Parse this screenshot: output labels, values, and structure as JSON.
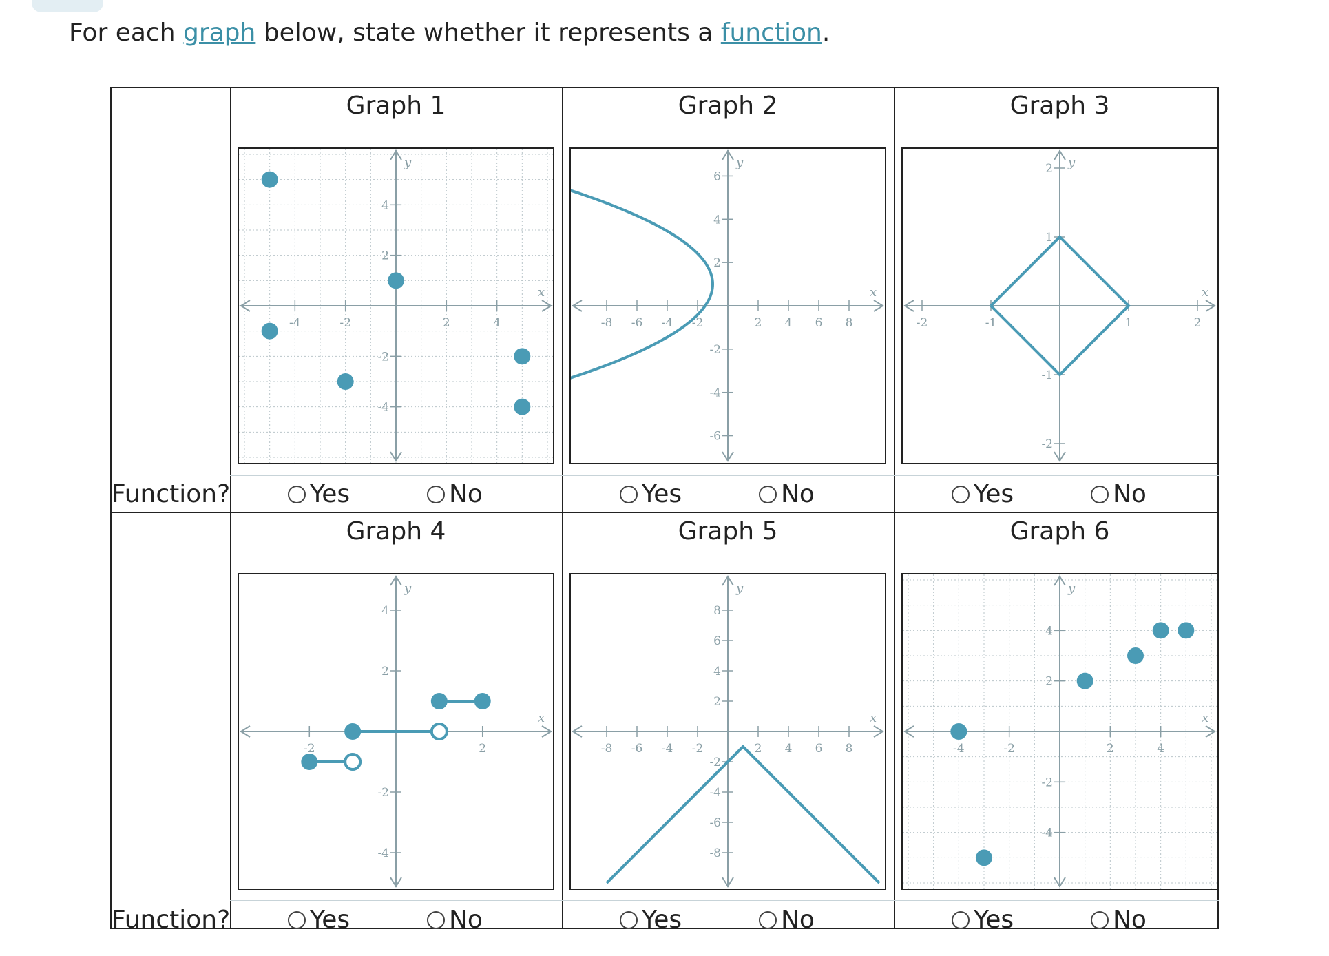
{
  "prompt": {
    "before": "For each ",
    "link1": "graph",
    "middle": " below, state whether it represents a ",
    "link2": "function",
    "after": "."
  },
  "row_label": "Function?",
  "options": {
    "yes": "Yes",
    "no": "No"
  },
  "colors": {
    "accent": "#4a9bb5",
    "axis": "#8a9fa6",
    "grid": "#b9c5c9",
    "link": "#3b8fa6"
  },
  "graphs": [
    {
      "title": "Graph 1",
      "xlim": [
        -6,
        6
      ],
      "ylim": [
        -6,
        6
      ],
      "grid": true,
      "xstep": 2,
      "ystep": 2,
      "xticks": [
        "-4",
        "-2",
        "2",
        "4"
      ],
      "yticks": [
        "4",
        "2",
        "-2",
        "-4"
      ],
      "points": [
        [
          -5,
          5
        ],
        [
          -5,
          -1
        ],
        [
          -2,
          -3
        ],
        [
          0,
          1
        ],
        [
          5,
          -2
        ],
        [
          5,
          -4
        ]
      ],
      "open_points": [],
      "segments": [],
      "polylines": [],
      "curves": []
    },
    {
      "title": "Graph 2",
      "xlim": [
        -10,
        10
      ],
      "ylim": [
        -7,
        7
      ],
      "grid": false,
      "xstep": 2,
      "ystep": 2,
      "xticks": [
        "-8",
        "-6",
        "-4",
        "-2",
        "2",
        "4",
        "6",
        "8"
      ],
      "yticks": [
        "6",
        "4",
        "2",
        "-2",
        "-4",
        "-6"
      ],
      "points": [],
      "open_points": [],
      "segments": [],
      "polylines": [],
      "curves": [
        {
          "type": "sideways_parabola",
          "a": -0.5,
          "k": 1,
          "h": -1,
          "ymin": -5,
          "ymax": 8
        }
      ]
    },
    {
      "title": "Graph 3",
      "xlim": [
        -2.2,
        2.2
      ],
      "ylim": [
        -2.2,
        2.2
      ],
      "grid": false,
      "xstep": 1,
      "ystep": 1,
      "xticks": [
        "-2",
        "-1",
        "1",
        "2"
      ],
      "yticks": [
        "2",
        "1",
        "-1",
        "-2"
      ],
      "points": [],
      "open_points": [],
      "segments": [],
      "polylines": [
        [
          [
            -1,
            0
          ],
          [
            0,
            1
          ],
          [
            1,
            0
          ],
          [
            0,
            -1
          ],
          [
            -1,
            0
          ]
        ]
      ],
      "curves": []
    },
    {
      "title": "Graph 4",
      "xlim": [
        -3.5,
        3.5
      ],
      "ylim": [
        -5,
        5
      ],
      "grid": false,
      "xstep": 1,
      "ystep": 2,
      "xticks": [
        "-2",
        "2"
      ],
      "yticks": [
        "4",
        "2",
        "-2",
        "-4"
      ],
      "points": [
        [
          -2,
          -1
        ],
        [
          -1,
          0
        ],
        [
          1,
          1
        ],
        [
          2,
          1
        ]
      ],
      "open_points": [
        [
          -1,
          -1
        ],
        [
          1,
          0
        ]
      ],
      "segments": [
        [
          [
            -2,
            -1
          ],
          [
            -1,
            -1
          ]
        ],
        [
          [
            -1,
            0
          ],
          [
            1,
            0
          ]
        ],
        [
          [
            1,
            1
          ],
          [
            2,
            1
          ]
        ]
      ],
      "polylines": [],
      "curves": []
    },
    {
      "title": "Graph 5",
      "xlim": [
        -10,
        10
      ],
      "ylim": [
        -10,
        10
      ],
      "grid": false,
      "xstep": 2,
      "ystep": 2,
      "xticks": [
        "-8",
        "-6",
        "-4",
        "-2",
        "2",
        "4",
        "6",
        "8"
      ],
      "yticks": [
        "8",
        "6",
        "4",
        "2",
        "-2",
        "-4",
        "-6",
        "-8"
      ],
      "points": [],
      "open_points": [],
      "segments": [],
      "polylines": [
        [
          [
            -8,
            -10
          ],
          [
            1,
            -1
          ],
          [
            10,
            -10
          ]
        ]
      ],
      "curves": []
    },
    {
      "title": "Graph 6",
      "xlim": [
        -6,
        6
      ],
      "ylim": [
        -6,
        6
      ],
      "grid": true,
      "xstep": 2,
      "ystep": 2,
      "xticks": [
        "-4",
        "-2",
        "2",
        "4"
      ],
      "yticks": [
        "4",
        "2",
        "-2",
        "-4"
      ],
      "points": [
        [
          -4,
          0
        ],
        [
          -3,
          -5
        ],
        [
          1,
          2
        ],
        [
          3,
          3
        ],
        [
          4,
          4
        ],
        [
          5,
          4
        ]
      ],
      "open_points": [],
      "segments": [],
      "polylines": [],
      "curves": []
    }
  ]
}
